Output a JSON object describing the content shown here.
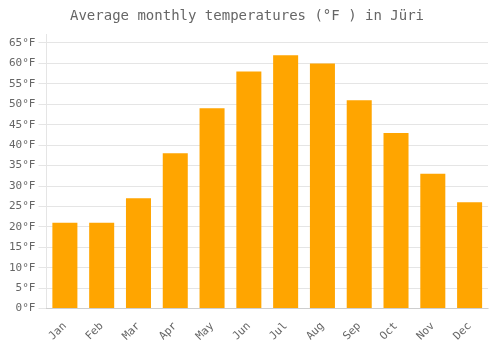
{
  "chart_data": {
    "type": "bar",
    "title": "Average monthly temperatures (°F ) in Jüri",
    "categories": [
      "Jan",
      "Feb",
      "Mar",
      "Apr",
      "May",
      "Jun",
      "Jul",
      "Aug",
      "Sep",
      "Oct",
      "Nov",
      "Dec"
    ],
    "values": [
      21,
      21,
      27,
      38,
      49,
      58,
      62,
      60,
      51,
      43,
      33,
      26
    ],
    "color": "#FFA500",
    "ylim": [
      0,
      67
    ],
    "yticks": [
      {
        "value": 0,
        "label": "0°F"
      },
      {
        "value": 5,
        "label": "5°F"
      },
      {
        "value": 10,
        "label": "10°F"
      },
      {
        "value": 15,
        "label": "15°F"
      },
      {
        "value": 20,
        "label": "20°F"
      },
      {
        "value": 25,
        "label": "25°F"
      },
      {
        "value": 30,
        "label": "30°F"
      },
      {
        "value": 35,
        "label": "35°F"
      },
      {
        "value": 40,
        "label": "40°F"
      },
      {
        "value": 45,
        "label": "45°F"
      },
      {
        "value": 50,
        "label": "50°F"
      },
      {
        "value": 55,
        "label": "55°F"
      },
      {
        "value": 60,
        "label": "60°F"
      },
      {
        "value": 65,
        "label": "65°F"
      }
    ],
    "grid": true
  }
}
